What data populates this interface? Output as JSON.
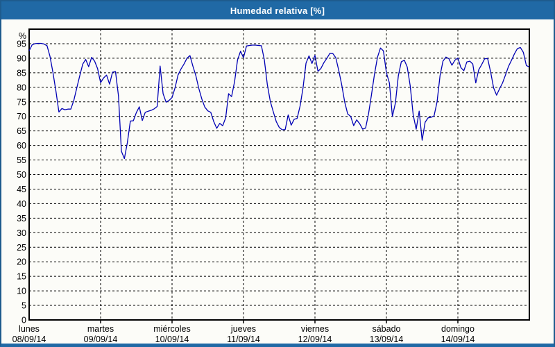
{
  "window": {
    "title": "Humedad relativa [%]"
  },
  "colors": {
    "titlebar_bg": "#2069A5",
    "titlebar_text": "#FFFFFF",
    "window_border": "#1E5B8D",
    "page_bg": "#FCFCF8",
    "plot_border": "#000000",
    "grid": "#000000",
    "line": "#0000B4",
    "tick_text": "#000000"
  },
  "chart_data": {
    "type": "line",
    "title": "Humedad relativa [%]",
    "unit_label": "%",
    "xlabel": "",
    "ylabel": "%",
    "ylim": [
      0,
      100
    ],
    "y_ticks": [
      0,
      5,
      10,
      15,
      20,
      25,
      30,
      35,
      40,
      45,
      50,
      55,
      60,
      65,
      70,
      75,
      80,
      85,
      90,
      95
    ],
    "grid": "dashed",
    "legend": "none",
    "x_days": [
      {
        "name": "lunes",
        "date": "08/09/14"
      },
      {
        "name": "martes",
        "date": "09/09/14"
      },
      {
        "name": "miércoles",
        "date": "10/09/14"
      },
      {
        "name": "jueves",
        "date": "11/09/14"
      },
      {
        "name": "viernes",
        "date": "12/09/14"
      },
      {
        "name": "sábado",
        "date": "13/09/14"
      },
      {
        "name": "domingo",
        "date": "14/09/14"
      }
    ],
    "sampling": "hourly, Monday 00:00 through Sunday 24:00",
    "series": [
      {
        "name": "Humedad relativa",
        "unit": "%",
        "values": [
          92.5,
          94.6,
          95,
          95.1,
          95.1,
          94.9,
          94.3,
          90.7,
          85.1,
          78.7,
          71.5,
          72.7,
          72.3,
          72.5,
          72.5,
          75.5,
          79.8,
          84,
          88,
          89.6,
          87.1,
          90.3,
          89,
          86.4,
          81.6,
          83.2,
          84.2,
          81.1,
          85.2,
          85.4,
          77,
          58,
          55.5,
          61,
          68.4,
          68.5,
          71.3,
          73.3,
          68.6,
          71.4,
          71.8,
          72.1,
          72.6,
          73.4,
          87.3,
          77.8,
          74.9,
          75.5,
          76.5,
          79.8,
          84.2,
          86.3,
          88,
          90,
          90.9,
          87.3,
          84,
          79.6,
          76,
          73.2,
          71.9,
          71.4,
          68.2,
          65.9,
          67.6,
          66.8,
          69.5,
          77.8,
          76.8,
          81.9,
          89.4,
          92.4,
          90.2,
          94.2,
          94.4,
          94.5,
          94.5,
          94.4,
          94.3,
          89.5,
          81,
          75.2,
          71.6,
          68.2,
          66.2,
          65.4,
          65.5,
          70.5,
          67,
          69,
          69.3,
          73.5,
          79.8,
          88.3,
          90.8,
          88.2,
          91,
          85.5,
          86.5,
          88.5,
          90,
          91.7,
          91.6,
          90.2,
          85.8,
          80.8,
          74.9,
          70.8,
          70,
          66.8,
          68.8,
          67.5,
          65.6,
          66,
          71,
          77.5,
          84.5,
          90.3,
          93.5,
          92.5,
          85,
          81.5,
          70,
          74.5,
          84,
          88.8,
          89.3,
          87,
          80.5,
          70.5,
          65.6,
          71.8,
          61.8,
          68,
          69.5,
          69.7,
          70.2,
          75,
          84,
          89,
          90.4,
          89.8,
          87.6,
          89.3,
          90.1,
          86.8,
          85.7,
          88.7,
          89,
          88,
          81.5,
          86,
          87.8,
          89.8,
          89.9,
          85.3,
          79.8,
          77.3,
          79.5,
          81.5,
          84.3,
          87.2,
          89.3,
          91.5,
          93.3,
          93.7,
          92,
          87.5,
          87
        ]
      }
    ]
  }
}
